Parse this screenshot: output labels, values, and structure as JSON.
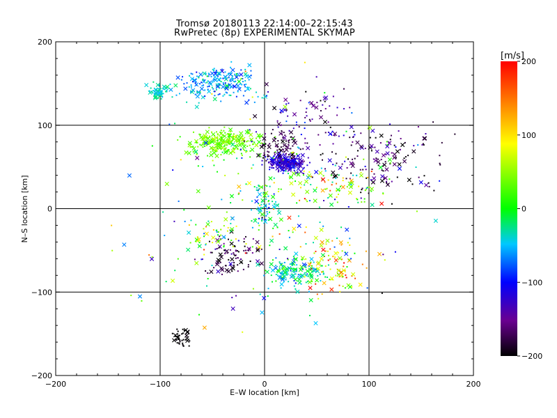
{
  "chart_data": {
    "type": "scatter",
    "title": "Tromsø 20180113 22:14:00–22:15:43",
    "subtitle": "RwPretec (8p) EXPERIMENTAL SKYMAP",
    "xlabel": "E–W location [km]",
    "ylabel": "N–S location [km]",
    "xlim": [
      -200,
      200
    ],
    "ylim": [
      -200,
      200
    ],
    "xticks": [
      "−200",
      "−100",
      "0",
      "100",
      "200"
    ],
    "yticks": [
      "−200",
      "−100",
      "0",
      "100",
      "200"
    ],
    "grid": true,
    "colorbar": {
      "label": "[m/s]",
      "range": [
        -200,
        200
      ],
      "ticks": [
        "200",
        "100",
        "0",
        "−100",
        "−200"
      ],
      "colormap": "black-purple-blue-cyan-green-yellow-red"
    },
    "clusters": [
      {
        "x": -45,
        "y": 150,
        "sx": 30,
        "sy": 18,
        "v": -60,
        "sv": 40,
        "n": 200
      },
      {
        "x": -100,
        "y": 140,
        "sx": 10,
        "sy": 8,
        "v": -40,
        "sv": 20,
        "n": 60
      },
      {
        "x": -38,
        "y": 80,
        "sx": 28,
        "sy": 12,
        "v": 40,
        "sv": 25,
        "n": 260
      },
      {
        "x": 20,
        "y": 55,
        "sx": 15,
        "sy": 9,
        "v": -120,
        "sv": 25,
        "n": 220
      },
      {
        "x": 15,
        "y": 75,
        "sx": 20,
        "sy": 15,
        "v": -180,
        "sv": 25,
        "n": 70
      },
      {
        "x": 110,
        "y": 60,
        "sx": 50,
        "sy": 35,
        "v": -170,
        "sv": 60,
        "n": 150
      },
      {
        "x": 40,
        "y": 110,
        "sx": 40,
        "sy": 30,
        "v": -150,
        "sv": 60,
        "n": 80
      },
      {
        "x": 60,
        "y": 30,
        "sx": 40,
        "sy": 20,
        "v": 60,
        "sv": 120,
        "n": 90
      },
      {
        "x": -30,
        "y": -55,
        "sx": 25,
        "sy": 20,
        "v": -180,
        "sv": 40,
        "n": 90
      },
      {
        "x": 30,
        "y": -75,
        "sx": 25,
        "sy": 15,
        "v": -30,
        "sv": 50,
        "n": 150
      },
      {
        "x": 65,
        "y": -70,
        "sx": 25,
        "sy": 30,
        "v": 100,
        "sv": 110,
        "n": 90
      },
      {
        "x": 0,
        "y": 5,
        "sx": 12,
        "sy": 25,
        "v": -40,
        "sv": 50,
        "n": 60
      },
      {
        "x": -80,
        "y": -155,
        "sx": 8,
        "sy": 10,
        "v": -200,
        "sv": 5,
        "n": 40
      },
      {
        "x": -50,
        "y": -30,
        "sx": 20,
        "sy": 15,
        "v": 50,
        "sv": 80,
        "n": 40
      },
      {
        "x": 0,
        "y": 0,
        "sx": 110,
        "sy": 110,
        "v": 0,
        "sv": 140,
        "n": 230
      }
    ]
  }
}
